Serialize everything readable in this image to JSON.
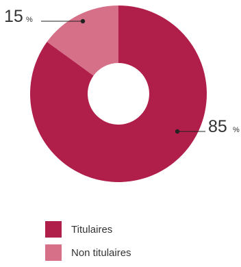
{
  "chart_data": {
    "type": "pie",
    "donut": true,
    "series": [
      {
        "values": [
          {
            "label": "Titulaires",
            "value": 85,
            "display_value": "85",
            "unit": "%",
            "color": "#b01e4a"
          },
          {
            "label": "Non titulaires",
            "value": 15,
            "display_value": "15",
            "unit": "%",
            "color": "#d66f88"
          }
        ]
      }
    ],
    "legend_position": "bottom-left"
  }
}
